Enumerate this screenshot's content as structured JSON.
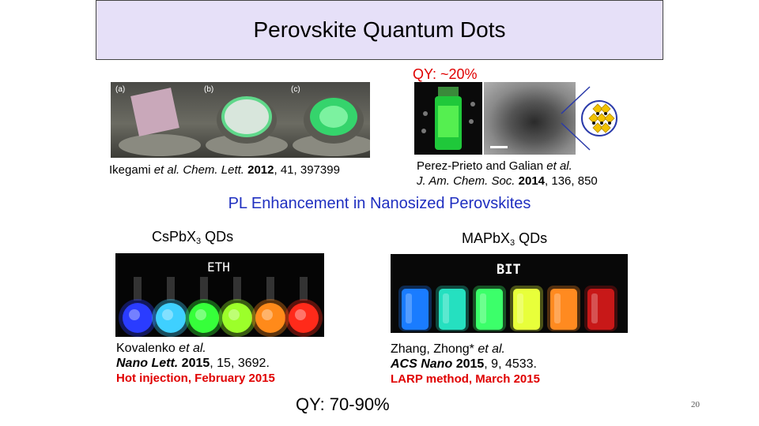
{
  "slide": {
    "title": "Perovskite Quantum Dots",
    "qy_top": "QY: ~20%",
    "heading": "PL Enhancement in Nanosized Perovskites",
    "qy_bottom": "QY: 70-90%",
    "page_number": "20"
  },
  "top_left_figure": {
    "panel_labels": [
      "(a)",
      "(b)",
      "(c)"
    ],
    "citation": {
      "authors": "Ikegami",
      "etal": "et al.",
      "journal": "Chem. Lett.",
      "year": "2012",
      "rest": ", 41, 397399"
    }
  },
  "top_right_figure": {
    "citation_line1": {
      "authors": "Perez-Prieto and Galian",
      "etal": "et al.",
      "end": ""
    },
    "citation_line2": {
      "journal": "J. Am. Chem. Soc.",
      "year": "2014",
      "rest": ", 136, 850"
    }
  },
  "left_column": {
    "label_prefix": "Cs",
    "label_mid": "Pb",
    "label_x": "X",
    "label_sub": "3",
    "label_suffix": " QDs",
    "photo_label": "ETH",
    "citation_line1": {
      "authors": "Kovalenko",
      "etal": "et al.",
      "end": ""
    },
    "citation_line2": {
      "journal": "Nano Lett.",
      "year": "2015",
      "rest": ", 15, 3692."
    },
    "method": "Hot injection, February 2015",
    "flask_colors": [
      "#2a3cff",
      "#3fd0ff",
      "#36ff3a",
      "#9cff2a",
      "#ff8a1a",
      "#ff2a1a"
    ]
  },
  "right_column": {
    "label_prefix": "MAPb",
    "label_x": "X",
    "label_sub": "3",
    "label_suffix": " QDs",
    "photo_label": "BIT",
    "citation_line1": {
      "authors": "Zhang, Zhong*",
      "etal": "et al.",
      "end": ""
    },
    "citation_line2": {
      "journal": "ACS Nano",
      "year": "2015",
      "rest": ", 9, 4533."
    },
    "method": "LARP method, March 2015",
    "vial_colors": [
      "#1a7cff",
      "#25e0c0",
      "#3cff6a",
      "#e8ff3a",
      "#ff8a20",
      "#c81818"
    ]
  },
  "colors": {
    "title_bg": "#e6e0f8",
    "accent_red": "#e00000",
    "heading_blue": "#1f2fc0"
  }
}
